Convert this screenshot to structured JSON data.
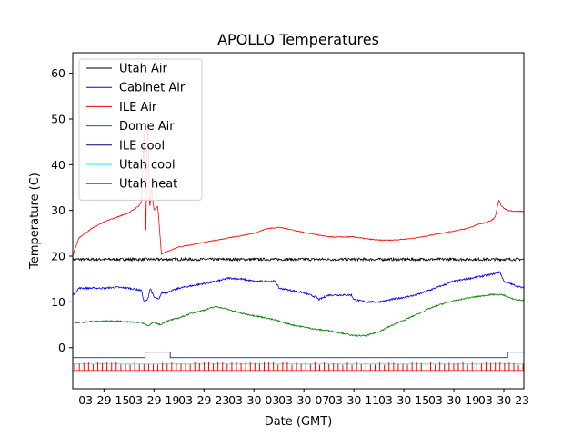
{
  "chart_data": {
    "type": "line",
    "title": "APOLLO Temperatures",
    "xlabel": "Date (GMT)",
    "ylabel": "Temperature (C)",
    "xlim": [
      12.5,
      48.6
    ],
    "ylim": [
      -9,
      64.5
    ],
    "x_units": "hours since 03-29 00:00 GMT",
    "x_ticks": [
      {
        "x": 15,
        "label": "03-29 15"
      },
      {
        "x": 19,
        "label": "03-29 19"
      },
      {
        "x": 23,
        "label": "03-29 23"
      },
      {
        "x": 27,
        "label": "03-30 03"
      },
      {
        "x": 31,
        "label": "03-30 07"
      },
      {
        "x": 35,
        "label": "03-30 11"
      },
      {
        "x": 39,
        "label": "03-30 15"
      },
      {
        "x": 43,
        "label": "03-30 19"
      },
      {
        "x": 47,
        "label": "03-30 23"
      }
    ],
    "y_ticks": [
      0,
      10,
      20,
      30,
      40,
      50,
      60
    ],
    "legend_position": "top-left",
    "series": [
      {
        "name": "Utah Air",
        "color": "#000000",
        "x": [
          12.5,
          48.6
        ],
        "y": [
          19.3,
          19.3
        ],
        "noise": 0.6
      },
      {
        "name": "Cabinet Air",
        "color": "#0000ff",
        "x": [
          12.5,
          13,
          14,
          15,
          16,
          17,
          18,
          18.2,
          18.5,
          18.7,
          19,
          19.4,
          19.6,
          20,
          21,
          22,
          23,
          24,
          25,
          26,
          27,
          28,
          28.7,
          29,
          30,
          31,
          32,
          32.2,
          33,
          34,
          34.8,
          35,
          36,
          37,
          38,
          39,
          40,
          41,
          42,
          43,
          44,
          45,
          46,
          46.7,
          47,
          47.5,
          48,
          48.6
        ],
        "y": [
          11.5,
          13,
          13,
          13,
          13.2,
          13,
          12.5,
          10,
          10.5,
          13,
          11,
          10.5,
          12,
          12,
          13,
          13.5,
          14,
          14.5,
          15.2,
          15,
          14.5,
          14.5,
          14.5,
          13,
          12.5,
          12,
          11,
          10.5,
          11.5,
          11.5,
          11.5,
          10.5,
          10,
          10,
          10.5,
          11,
          11.5,
          12.5,
          13.5,
          14.5,
          15,
          15.5,
          16,
          16.5,
          14.5,
          14,
          13.5,
          13
        ],
        "noise": 0.4
      },
      {
        "name": "ILE Air",
        "color": "#ff0000",
        "x": [
          12.5,
          12.6,
          13,
          14,
          15,
          16,
          17,
          17.8,
          18,
          18.2,
          18.35,
          18.5,
          18.65,
          18.8,
          19,
          19.3,
          19.6,
          20,
          21,
          22,
          23,
          24,
          25,
          26,
          27,
          28,
          29,
          30,
          31,
          32,
          33,
          34,
          35,
          36,
          37,
          38,
          39,
          40,
          41,
          42,
          43,
          44,
          45,
          45.5,
          46,
          46.3,
          46.6,
          46.8,
          47,
          47.3,
          48,
          48.6
        ],
        "y": [
          20,
          21,
          24,
          26,
          27.5,
          28.5,
          29.5,
          31,
          32,
          47,
          24.5,
          52,
          30,
          35,
          30,
          31,
          20.5,
          21,
          22,
          22.5,
          23,
          23.5,
          24,
          24.5,
          25,
          26,
          26.3,
          25.8,
          25.2,
          24.7,
          24.2,
          24.2,
          24.2,
          23.8,
          23.5,
          23.5,
          23.7,
          24,
          24.5,
          25,
          25.5,
          26,
          27,
          27.3,
          27.8,
          28.5,
          32.2,
          31,
          30.5,
          30,
          29.8,
          29.8
        ],
        "noise": 0.2
      },
      {
        "name": "Dome Air",
        "color": "#008000",
        "x": [
          12.5,
          13,
          14,
          15,
          16,
          17,
          18,
          18.5,
          19,
          19.5,
          20,
          21,
          22,
          23,
          24,
          25,
          26,
          27,
          28,
          29,
          30,
          31,
          32,
          33,
          34,
          35,
          36,
          37,
          38,
          39,
          40,
          41,
          42,
          43,
          44,
          45,
          46,
          46.5,
          47,
          47.5,
          48,
          48.6
        ],
        "y": [
          5.5,
          5.5,
          5.7,
          5.8,
          5.8,
          5.6,
          5.5,
          4.8,
          5.5,
          5.0,
          5.8,
          6.5,
          7.5,
          8.2,
          9.0,
          8.3,
          7.5,
          7.0,
          6.5,
          5.8,
          5.0,
          4.5,
          4.0,
          3.7,
          3.2,
          2.6,
          2.6,
          3.5,
          4.8,
          6.0,
          7.2,
          8.5,
          9.5,
          10.2,
          10.8,
          11.2,
          11.6,
          11.6,
          11.5,
          10.8,
          10.5,
          10.3
        ],
        "noise": 0.3
      },
      {
        "name": "ILE cool",
        "color": "#000080",
        "x": [
          12.5,
          18.3,
          18.3,
          20.3,
          20.3,
          47.3,
          47.3,
          48.6
        ],
        "y": [
          -2.2,
          -2.2,
          -1.0,
          -1.0,
          -2.2,
          -2.2,
          -1.0,
          -1.0
        ],
        "noise": 0
      },
      {
        "name": "Utah cool",
        "color": "#00ffff",
        "x": [
          12.5,
          48.6
        ],
        "y": [
          -3.6,
          -3.6
        ],
        "noise": 0
      },
      {
        "name": "Utah heat",
        "color": "#ff0000",
        "x": [
          12.5,
          48.6
        ],
        "y": [
          -5.0,
          -5.0
        ],
        "noise": 0,
        "spikes": true
      }
    ]
  }
}
